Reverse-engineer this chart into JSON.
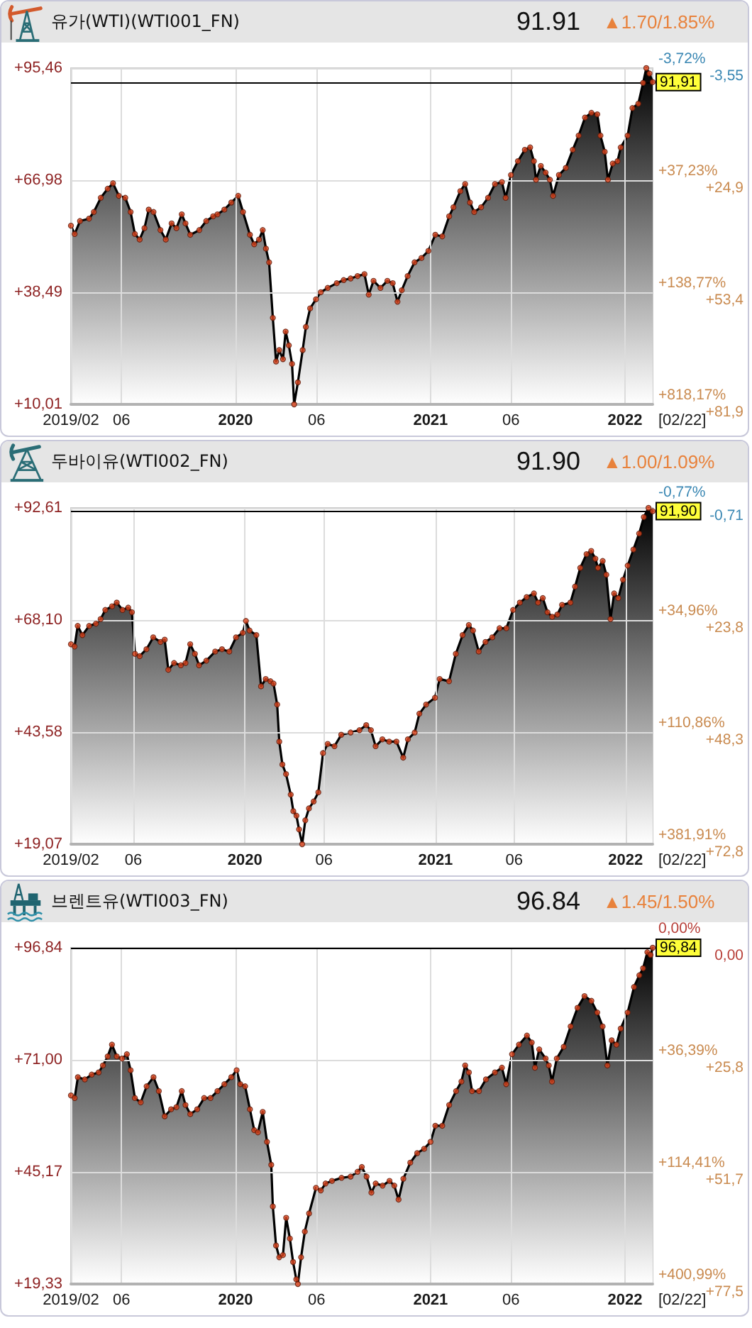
{
  "chart_data": [
    {
      "type": "area",
      "title": "유가(WTI)(WTI001_FN)",
      "annotations": [
        "91.91",
        "▲1.70/1.85%",
        "[02/22]",
        {
          "text": "-3,72%",
          "x": "2022-02-22",
          "y": 95.46
        },
        {
          "text": "+37,23%",
          "x": "2022-02-22",
          "y": 66.98
        },
        {
          "text": "+138,77%",
          "x": "2022-02-22",
          "y": 38.49
        },
        {
          "text": "+818,17%",
          "x": "2022-02-22",
          "y": 10.01
        }
      ],
      "grid": true,
      "x": [
        "2019-02-26",
        "2019-03-05",
        "2019-03-15",
        "2019-04-01",
        "2019-04-10",
        "2019-04-23",
        "2019-05-06",
        "2019-05-16",
        "2019-05-27",
        "2019-06-08",
        "2019-06-18",
        "2019-06-26",
        "2019-07-05",
        "2019-07-14",
        "2019-07-22",
        "2019-07-31",
        "2019-08-13",
        "2019-08-23",
        "2019-09-03",
        "2019-09-12",
        "2019-09-22",
        "2019-09-29",
        "2019-10-08",
        "2019-10-25",
        "2019-11-07",
        "2019-11-20",
        "2019-11-28",
        "2019-12-11",
        "2019-12-24",
        "2020-01-06",
        "2020-01-15",
        "2020-01-28",
        "2020-02-05",
        "2020-02-14",
        "2020-02-21",
        "2020-02-27",
        "2020-03-04",
        "2020-03-11",
        "2020-03-17",
        "2020-03-23",
        "2020-03-30",
        "2020-04-04",
        "2020-04-10",
        "2020-04-16",
        "2020-04-20",
        "2020-04-27",
        "2020-05-06",
        "2020-05-12",
        "2020-05-20",
        "2020-05-31",
        "2020-06-09",
        "2020-06-22",
        "2020-07-09",
        "2020-07-22",
        "2020-08-04",
        "2020-08-17",
        "2020-08-30",
        "2020-09-07",
        "2020-09-16",
        "2020-09-29",
        "2020-10-12",
        "2020-10-22",
        "2020-10-31",
        "2020-11-08",
        "2020-11-19",
        "2020-12-02",
        "2020-12-15",
        "2020-12-28",
        "2021-01-10",
        "2021-01-23",
        "2021-02-05",
        "2021-02-13",
        "2021-02-26",
        "2021-03-07",
        "2021-03-16",
        "2021-03-24",
        "2021-04-06",
        "2021-04-19",
        "2021-05-02",
        "2021-05-15",
        "2021-05-22",
        "2021-06-01",
        "2021-06-14",
        "2021-06-27",
        "2021-07-07",
        "2021-07-14",
        "2021-07-18",
        "2021-07-27",
        "2021-08-05",
        "2021-08-13",
        "2021-08-19",
        "2021-08-30",
        "2021-09-12",
        "2021-09-25",
        "2021-10-06",
        "2021-10-18",
        "2021-10-30",
        "2021-11-10",
        "2021-11-16",
        "2021-11-24",
        "2021-11-30",
        "2021-12-09",
        "2021-12-18",
        "2021-12-24",
        "2022-01-06",
        "2022-01-15",
        "2022-01-26",
        "2022-02-04",
        "2022-02-10",
        "2022-02-16",
        "2022-02-22"
      ],
      "series": [
        {
          "color": "#000000",
          "values": [
            55.4,
            53.3,
            56.6,
            57.2,
            58.9,
            62.5,
            64.8,
            66.2,
            63.0,
            62.5,
            58.9,
            53.3,
            51.9,
            54.8,
            59.5,
            58.9,
            54.3,
            51.9,
            56.0,
            54.8,
            58.3,
            56.0,
            53.1,
            54.3,
            56.6,
            57.8,
            58.3,
            59.5,
            61.3,
            63.0,
            58.9,
            53.1,
            50.7,
            51.9,
            54.3,
            49.6,
            46.1,
            32.0,
            20.9,
            23.8,
            21.5,
            28.5,
            25.0,
            20.3,
            10.01,
            15.6,
            23.8,
            29.7,
            34.4,
            36.7,
            38.5,
            39.6,
            40.8,
            41.6,
            42.0,
            42.6,
            43.1,
            37.9,
            41.4,
            39.6,
            41.4,
            40.8,
            36.1,
            39.0,
            42.6,
            46.1,
            47.2,
            49.0,
            53.1,
            52.7,
            57.8,
            60.1,
            64.2,
            66.0,
            61.3,
            58.9,
            60.1,
            62.5,
            66.0,
            66.5,
            62.5,
            68.3,
            71.8,
            74.7,
            75.3,
            71.8,
            67.1,
            70.6,
            68.9,
            67.1,
            63.0,
            68.3,
            70.1,
            74.7,
            78.3,
            82.9,
            84.1,
            83.7,
            78.3,
            74.2,
            67.1,
            71.2,
            71.8,
            75.3,
            78.3,
            85.3,
            86.4,
            91.7,
            95.46,
            94.1,
            91.91
          ]
        },
        {
          "type": "scatter",
          "color": "#e0461e",
          "values": [
            55.4,
            53.3,
            56.6,
            57.2,
            58.9,
            62.5,
            64.8,
            66.2,
            63.0,
            62.5,
            58.9,
            53.3,
            51.9,
            54.8,
            59.5,
            58.9,
            54.3,
            51.9,
            56.0,
            54.8,
            58.3,
            56.0,
            53.1,
            54.3,
            56.6,
            57.8,
            58.3,
            59.5,
            61.3,
            63.0,
            58.9,
            53.1,
            50.7,
            51.9,
            54.3,
            49.6,
            46.1,
            32.0,
            20.9,
            23.8,
            21.5,
            28.5,
            25.0,
            20.3,
            10.01,
            15.6,
            23.8,
            29.7,
            34.4,
            36.7,
            38.5,
            39.6,
            40.8,
            41.6,
            42.0,
            42.6,
            43.1,
            37.9,
            41.4,
            39.6,
            41.4,
            40.8,
            36.1,
            39.0,
            42.6,
            46.1,
            47.2,
            49.0,
            53.1,
            52.7,
            57.8,
            60.1,
            64.2,
            66.0,
            61.3,
            58.9,
            60.1,
            62.5,
            66.0,
            66.5,
            62.5,
            68.3,
            71.8,
            74.7,
            75.3,
            71.8,
            67.1,
            70.6,
            68.9,
            67.1,
            63.0,
            68.3,
            70.1,
            74.7,
            78.3,
            82.9,
            84.1,
            83.7,
            78.3,
            74.2,
            67.1,
            71.2,
            71.8,
            75.3,
            78.3,
            85.3,
            86.4,
            91.7,
            95.46,
            94.1,
            91.91
          ]
        }
      ],
      "xlim": [
        "2019-02-26",
        "2022-02-22"
      ],
      "xticks": [
        {
          "value": "2019-02-26",
          "label": "2019/02"
        },
        {
          "value": "2019-06-01",
          "label": "06"
        },
        {
          "value": "2020-01-01",
          "label": "2020"
        },
        {
          "value": "2020-06-01",
          "label": "06"
        },
        {
          "value": "2021-01-01",
          "label": "2021"
        },
        {
          "value": "2021-06-01",
          "label": "06"
        },
        {
          "value": "2022-01-01",
          "label": "2022"
        }
      ],
      "ylim": [
        10.01,
        95.46
      ],
      "yticks": [
        {
          "value": 95.46,
          "label": "+95,46"
        },
        {
          "value": 66.98,
          "label": "+66,98"
        },
        {
          "value": 38.49,
          "label": "+38,49"
        },
        {
          "value": 10.01,
          "label": "+10,01"
        }
      ],
      "y2lim": [
        81.9,
        -3.55
      ],
      "y2ticks": [
        {
          "value": -3.55,
          "label": "-3,55"
        },
        {
          "value": 24.9,
          "label": "+24,9"
        },
        {
          "value": 53.4,
          "label": "+53,4"
        },
        {
          "value": 81.9,
          "label": "+81,9"
        }
      ],
      "ref_lines": [
        {
          "axis": "y",
          "value": 91.91,
          "label": "91,91",
          "color": "#000000"
        }
      ]
    },
    {
      "type": "area",
      "title": "두바이유(WTI002_FN)",
      "annotations": [
        "91.90",
        "▲1.00/1.09%",
        "[02/22]",
        {
          "text": "-0,77%",
          "x": "2022-02-22",
          "y": 92.61
        },
        {
          "text": "+34,96%",
          "x": "2022-02-22",
          "y": 68.1
        },
        {
          "text": "+110,86%",
          "x": "2022-02-22",
          "y": 43.58
        },
        {
          "text": "+381,91%",
          "x": "2022-02-22",
          "y": 19.07
        }
      ],
      "grid": true,
      "x": [
        "2019-02-01",
        "2019-02-08",
        "2019-02-14",
        "2019-02-23",
        "2019-03-08",
        "2019-03-21",
        "2019-03-30",
        "2019-04-08",
        "2019-04-21",
        "2019-04-30",
        "2019-05-11",
        "2019-05-22",
        "2019-05-29",
        "2019-06-04",
        "2019-06-13",
        "2019-06-26",
        "2019-07-09",
        "2019-07-23",
        "2019-07-31",
        "2019-08-07",
        "2019-08-18",
        "2019-08-31",
        "2019-09-09",
        "2019-09-18",
        "2019-09-27",
        "2019-10-05",
        "2019-10-19",
        "2019-11-05",
        "2019-11-18",
        "2019-12-02",
        "2019-12-15",
        "2019-12-28",
        "2020-01-03",
        "2020-01-10",
        "2020-01-23",
        "2020-02-01",
        "2020-02-10",
        "2020-02-19",
        "2020-02-25",
        "2020-03-03",
        "2020-03-07",
        "2020-03-13",
        "2020-03-20",
        "2020-03-29",
        "2020-04-03",
        "2020-04-09",
        "2020-04-14",
        "2020-04-20",
        "2020-04-26",
        "2020-05-03",
        "2020-05-12",
        "2020-05-21",
        "2020-05-30",
        "2020-06-08",
        "2020-06-21",
        "2020-07-04",
        "2020-07-22",
        "2020-08-08",
        "2020-08-21",
        "2020-08-30",
        "2020-09-08",
        "2020-09-21",
        "2020-10-04",
        "2020-10-18",
        "2020-10-31",
        "2020-11-09",
        "2020-11-22",
        "2020-12-01",
        "2020-12-14",
        "2020-12-31",
        "2021-01-09",
        "2021-01-27",
        "2021-02-09",
        "2021-02-22",
        "2021-03-06",
        "2021-03-14",
        "2021-03-25",
        "2021-04-07",
        "2021-04-20",
        "2021-05-04",
        "2021-05-17",
        "2021-05-30",
        "2021-06-12",
        "2021-06-25",
        "2021-07-09",
        "2021-07-17",
        "2021-07-26",
        "2021-08-04",
        "2021-08-13",
        "2021-08-23",
        "2021-09-01",
        "2021-09-17",
        "2021-09-26",
        "2021-10-06",
        "2021-10-18",
        "2021-10-27",
        "2021-11-04",
        "2021-11-09",
        "2021-11-18",
        "2021-11-25",
        "2021-12-03",
        "2021-12-10",
        "2021-12-18",
        "2021-12-27",
        "2022-01-05",
        "2022-01-16",
        "2022-01-27",
        "2022-02-05",
        "2022-02-14",
        "2022-02-22"
      ],
      "series": [
        {
          "color": "#000000",
          "values": [
            62.8,
            62.3,
            66.8,
            64.8,
            66.8,
            67.3,
            68.3,
            70.3,
            71.1,
            71.9,
            70.3,
            70.8,
            69.8,
            60.7,
            60.2,
            61.7,
            64.3,
            63.3,
            63.8,
            57.2,
            58.7,
            58.2,
            58.7,
            62.8,
            60.7,
            58.2,
            59.2,
            61.2,
            61.7,
            61.2,
            64.3,
            65.3,
            67.9,
            65.8,
            64.8,
            53.6,
            55.2,
            54.7,
            54.2,
            49.6,
            41.5,
            36.5,
            34.4,
            29.9,
            26.3,
            25.3,
            22.3,
            19.07,
            24.3,
            26.9,
            28.4,
            30.4,
            39.0,
            41.0,
            40.5,
            43.0,
            43.5,
            44.0,
            45.1,
            44.0,
            40.5,
            42.0,
            41.5,
            41.5,
            38.0,
            42.0,
            43.5,
            47.6,
            49.6,
            51.1,
            55.2,
            54.7,
            60.7,
            64.8,
            67.0,
            65.8,
            61.2,
            63.3,
            64.3,
            66.3,
            66.3,
            70.3,
            71.9,
            73.1,
            73.9,
            71.9,
            72.9,
            69.8,
            68.8,
            69.3,
            71.4,
            71.9,
            75.4,
            79.5,
            82.5,
            83.2,
            81.5,
            79.5,
            81.0,
            78.0,
            68.3,
            73.9,
            72.9,
            76.9,
            80.0,
            83.5,
            87.0,
            90.6,
            92.61,
            91.9
          ]
        },
        {
          "type": "scatter",
          "color": "#e0461e",
          "values": [
            62.8,
            62.3,
            66.8,
            64.8,
            66.8,
            67.3,
            68.3,
            70.3,
            71.1,
            71.9,
            70.3,
            70.8,
            69.8,
            60.7,
            60.2,
            61.7,
            64.3,
            63.3,
            63.8,
            57.2,
            58.7,
            58.2,
            58.7,
            62.8,
            60.7,
            58.2,
            59.2,
            61.2,
            61.7,
            61.2,
            64.3,
            65.3,
            67.9,
            65.8,
            64.8,
            53.6,
            55.2,
            54.7,
            54.2,
            49.6,
            41.5,
            36.5,
            34.4,
            29.9,
            26.3,
            25.3,
            22.3,
            19.07,
            24.3,
            26.9,
            28.4,
            30.4,
            39.0,
            41.0,
            40.5,
            43.0,
            43.5,
            44.0,
            45.1,
            44.0,
            40.5,
            42.0,
            41.5,
            41.5,
            38.0,
            42.0,
            43.5,
            47.6,
            49.6,
            51.1,
            55.2,
            54.7,
            60.7,
            64.8,
            67.0,
            65.8,
            61.2,
            63.3,
            64.3,
            66.3,
            66.3,
            70.3,
            71.9,
            73.1,
            73.9,
            71.9,
            72.9,
            69.8,
            68.8,
            69.3,
            71.4,
            71.9,
            75.4,
            79.5,
            82.5,
            83.2,
            81.5,
            79.5,
            81.0,
            78.0,
            68.3,
            73.9,
            72.9,
            76.9,
            80.0,
            83.5,
            87.0,
            90.6,
            92.61,
            91.9
          ]
        }
      ],
      "xlim": [
        "2019-02-01",
        "2022-02-22"
      ],
      "xticks": [
        {
          "value": "2019-02-01",
          "label": "2019/02"
        },
        {
          "value": "2019-06-01",
          "label": "06"
        },
        {
          "value": "2020-01-01",
          "label": "2020"
        },
        {
          "value": "2020-06-01",
          "label": "06"
        },
        {
          "value": "2021-01-01",
          "label": "2021"
        },
        {
          "value": "2021-06-01",
          "label": "06"
        },
        {
          "value": "2022-01-01",
          "label": "2022"
        }
      ],
      "ylim": [
        19.07,
        92.61
      ],
      "yticks": [
        {
          "value": 92.61,
          "label": "+92,61"
        },
        {
          "value": 68.1,
          "label": "+68,10"
        },
        {
          "value": 43.58,
          "label": "+43,58"
        },
        {
          "value": 19.07,
          "label": "+19,07"
        }
      ],
      "y2lim": [
        72.83,
        -0.71
      ],
      "y2ticks": [
        {
          "value": -0.71,
          "label": "-0,71"
        },
        {
          "value": 23.8,
          "label": "+23,8"
        },
        {
          "value": 48.3,
          "label": "+48,3"
        },
        {
          "value": 72.8,
          "label": "+72,8"
        }
      ],
      "ref_lines": [
        {
          "axis": "y",
          "value": 91.9,
          "label": "91,90",
          "color": "#000000"
        }
      ]
    },
    {
      "type": "area",
      "title": "브렌트유(WTI003_FN)",
      "annotations": [
        "96.84",
        "▲1.45/1.50%",
        "[02/22]",
        {
          "text": "0,00%",
          "x": "2022-02-22",
          "y": 96.84
        },
        {
          "text": "+36,39%",
          "x": "2022-02-22",
          "y": 71.0
        },
        {
          "text": "+114,41%",
          "x": "2022-02-22",
          "y": 45.17
        },
        {
          "text": "+400,99%",
          "x": "2022-02-22",
          "y": 19.33
        }
      ],
      "grid": true,
      "x": [
        "2019-02-26",
        "2019-03-05",
        "2019-03-11",
        "2019-03-24",
        "2019-04-06",
        "2019-04-19",
        "2019-04-27",
        "2019-05-06",
        "2019-05-14",
        "2019-05-23",
        "2019-06-02",
        "2019-06-11",
        "2019-06-18",
        "2019-06-26",
        "2019-07-07",
        "2019-07-18",
        "2019-07-31",
        "2019-08-10",
        "2019-08-21",
        "2019-09-02",
        "2019-09-12",
        "2019-09-22",
        "2019-09-29",
        "2019-10-08",
        "2019-10-21",
        "2019-11-03",
        "2019-11-15",
        "2019-11-28",
        "2019-12-11",
        "2019-12-24",
        "2020-01-03",
        "2020-01-10",
        "2020-01-19",
        "2020-01-28",
        "2020-02-05",
        "2020-02-12",
        "2020-02-21",
        "2020-02-29",
        "2020-03-08",
        "2020-03-11",
        "2020-03-17",
        "2020-03-23",
        "2020-03-30",
        "2020-04-05",
        "2020-04-12",
        "2020-04-18",
        "2020-04-24",
        "2020-04-27",
        "2020-05-03",
        "2020-05-10",
        "2020-05-18",
        "2020-05-31",
        "2020-06-09",
        "2020-06-18",
        "2020-06-30",
        "2020-07-18",
        "2020-08-04",
        "2020-08-17",
        "2020-08-25",
        "2020-09-03",
        "2020-09-12",
        "2020-09-20",
        "2020-10-03",
        "2020-10-16",
        "2020-10-25",
        "2020-11-02",
        "2020-11-11",
        "2020-11-24",
        "2020-12-07",
        "2020-12-20",
        "2021-01-01",
        "2021-01-10",
        "2021-01-23",
        "2021-02-05",
        "2021-02-18",
        "2021-02-28",
        "2021-03-07",
        "2021-03-14",
        "2021-03-20",
        "2021-04-02",
        "2021-04-15",
        "2021-05-02",
        "2021-05-15",
        "2021-05-23",
        "2021-06-03",
        "2021-06-16",
        "2021-07-01",
        "2021-07-10",
        "2021-07-16",
        "2021-07-24",
        "2021-08-05",
        "2021-08-11",
        "2021-08-17",
        "2021-08-26",
        "2021-09-08",
        "2021-09-21",
        "2021-10-04",
        "2021-10-17",
        "2021-10-30",
        "2021-11-10",
        "2021-11-20",
        "2021-11-29",
        "2021-12-07",
        "2021-12-16",
        "2021-12-24",
        "2022-01-06",
        "2022-01-18",
        "2022-01-28",
        "2022-02-04",
        "2022-02-12",
        "2022-02-18",
        "2022-02-22"
      ],
      "series": [
        {
          "color": "#000000",
          "values": [
            62.8,
            62.2,
            67.0,
            66.5,
            67.6,
            68.1,
            69.7,
            71.8,
            74.5,
            71.8,
            71.3,
            72.3,
            68.6,
            62.2,
            61.2,
            64.9,
            67.0,
            63.8,
            58.0,
            59.6,
            60.1,
            63.8,
            60.6,
            58.5,
            59.6,
            62.2,
            62.2,
            63.8,
            65.4,
            67.0,
            68.6,
            65.4,
            64.9,
            59.6,
            54.8,
            54.3,
            59.0,
            52.1,
            46.8,
            37.2,
            28.2,
            25.5,
            26.0,
            34.6,
            29.8,
            24.4,
            20.4,
            19.33,
            25.5,
            31.4,
            35.6,
            41.5,
            40.9,
            42.5,
            43.1,
            43.8,
            44.1,
            45.2,
            46.3,
            44.1,
            40.4,
            42.5,
            42.0,
            43.1,
            42.0,
            38.8,
            43.6,
            47.3,
            49.5,
            50.5,
            52.1,
            55.8,
            55.8,
            60.6,
            63.8,
            66.0,
            69.7,
            68.1,
            63.8,
            63.8,
            66.5,
            68.1,
            69.2,
            65.4,
            72.3,
            74.5,
            76.6,
            75.0,
            69.2,
            73.4,
            71.3,
            69.7,
            66.0,
            71.3,
            74.0,
            78.7,
            83.0,
            85.7,
            84.6,
            81.9,
            78.7,
            69.7,
            75.5,
            74.5,
            78.2,
            81.9,
            87.8,
            90.5,
            92.1,
            95.8,
            95.2,
            96.84
          ]
        },
        {
          "type": "scatter",
          "color": "#e0461e",
          "values": [
            62.8,
            62.2,
            67.0,
            66.5,
            67.6,
            68.1,
            69.7,
            71.8,
            74.5,
            71.8,
            71.3,
            72.3,
            68.6,
            62.2,
            61.2,
            64.9,
            67.0,
            63.8,
            58.0,
            59.6,
            60.1,
            63.8,
            60.6,
            58.5,
            59.6,
            62.2,
            62.2,
            63.8,
            65.4,
            67.0,
            68.6,
            65.4,
            64.9,
            59.6,
            54.8,
            54.3,
            59.0,
            52.1,
            46.8,
            37.2,
            28.2,
            25.5,
            26.0,
            34.6,
            29.8,
            24.4,
            20.4,
            19.33,
            25.5,
            31.4,
            35.6,
            41.5,
            40.9,
            42.5,
            43.1,
            43.8,
            44.1,
            45.2,
            46.3,
            44.1,
            40.4,
            42.5,
            42.0,
            43.1,
            42.0,
            38.8,
            43.6,
            47.3,
            49.5,
            50.5,
            52.1,
            55.8,
            55.8,
            60.6,
            63.8,
            66.0,
            69.7,
            68.1,
            63.8,
            63.8,
            66.5,
            68.1,
            69.2,
            65.4,
            72.3,
            74.5,
            76.6,
            75.0,
            69.2,
            73.4,
            71.3,
            69.7,
            66.0,
            71.3,
            74.0,
            78.7,
            83.0,
            85.7,
            84.6,
            81.9,
            78.7,
            69.7,
            75.5,
            74.5,
            78.2,
            81.9,
            87.8,
            90.5,
            92.1,
            95.8,
            95.2,
            96.84
          ]
        }
      ],
      "xlim": [
        "2019-02-26",
        "2022-02-22"
      ],
      "xticks": [
        {
          "value": "2019-02-26",
          "label": "2019/02"
        },
        {
          "value": "2019-06-01",
          "label": "06"
        },
        {
          "value": "2020-01-01",
          "label": "2020"
        },
        {
          "value": "2020-06-01",
          "label": "06"
        },
        {
          "value": "2021-01-01",
          "label": "2021"
        },
        {
          "value": "2021-06-01",
          "label": "06"
        },
        {
          "value": "2022-01-01",
          "label": "2022"
        }
      ],
      "ylim": [
        19.33,
        96.84
      ],
      "yticks": [
        {
          "value": 96.84,
          "label": "+96,84"
        },
        {
          "value": 71.0,
          "label": "+71,00"
        },
        {
          "value": 45.17,
          "label": "+45,17"
        },
        {
          "value": 19.33,
          "label": "+19,33"
        }
      ],
      "y2lim": [
        77.51,
        0
      ],
      "y2ticks": [
        {
          "value": 0,
          "label": "0,00"
        },
        {
          "value": 25.8,
          "label": "+25,8"
        },
        {
          "value": 51.7,
          "label": "+51,7"
        },
        {
          "value": 77.5,
          "label": "+77,5"
        }
      ],
      "ref_lines": [
        {
          "axis": "y",
          "value": 96.84,
          "label": "96,84",
          "color": "#000000"
        }
      ]
    }
  ]
}
